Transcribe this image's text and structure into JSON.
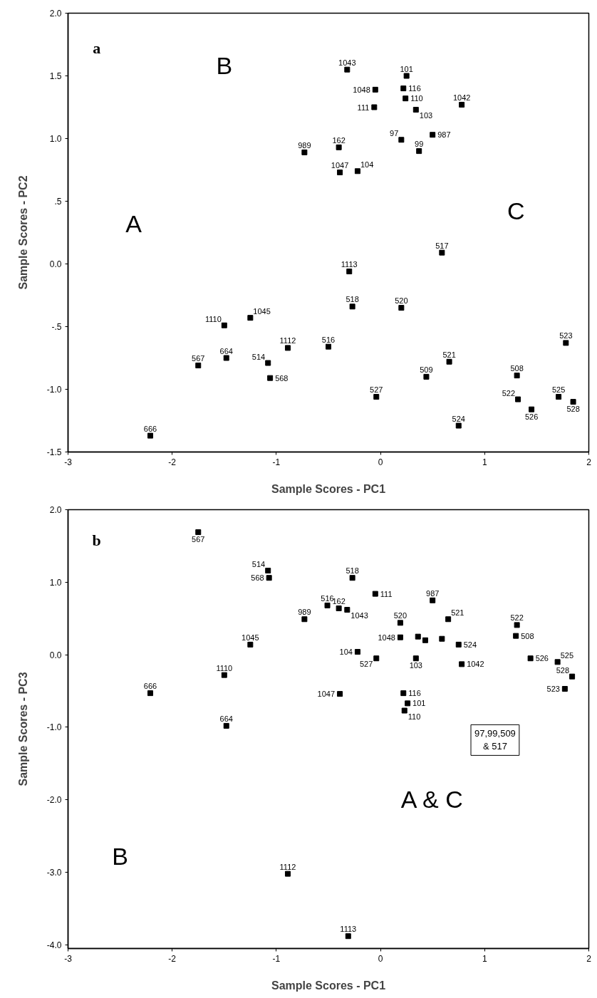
{
  "chart_data": [
    {
      "type": "scatter",
      "xlabel": "Sample Scores - PC1",
      "ylabel": "Sample Scores - PC2",
      "xlim": [
        -3,
        2
      ],
      "ylim": [
        -1.5,
        2.0
      ],
      "xticks": [
        -3,
        -2,
        -1,
        0,
        1,
        2
      ],
      "yticks": [
        {
          "value": 2.0,
          "label": "2.0"
        },
        {
          "value": 1.5,
          "label": "1.5"
        },
        {
          "value": 1.0,
          "label": "1.0"
        },
        {
          "value": 0.5,
          "label": ".5"
        },
        {
          "value": 0.0,
          "label": "0.0"
        },
        {
          "value": -0.5,
          "label": "-.5"
        },
        {
          "value": -1.0,
          "label": "-1.0"
        },
        {
          "value": -1.5,
          "label": "-1.5"
        }
      ],
      "grid": false,
      "marker": "square",
      "series": [
        {
          "color": "#000000",
          "x": [
            -0.32,
            0.25,
            0.22,
            0.24,
            -0.05,
            -0.06,
            0.34,
            0.78,
            0.2,
            0.5,
            0.37,
            -0.4,
            -0.39,
            -0.22,
            -0.73,
            -0.3,
            -0.27,
            0.2,
            0.59,
            -1.5,
            -1.25,
            -1.75,
            -1.48,
            -1.08,
            -0.89,
            -1.06,
            -0.5,
            -2.21,
            -0.04,
            0.44,
            0.66,
            1.78,
            1.31,
            1.32,
            1.45,
            1.71,
            1.85,
            0.75
          ],
          "values": [
            1.55,
            1.5,
            1.4,
            1.32,
            1.39,
            1.25,
            1.23,
            1.27,
            0.99,
            1.03,
            0.9,
            0.93,
            0.73,
            0.74,
            0.89,
            -0.06,
            -0.34,
            -0.35,
            0.09,
            -0.49,
            -0.43,
            -0.81,
            -0.75,
            -0.79,
            -0.67,
            -0.91,
            -0.66,
            -1.37,
            -1.06,
            -0.9,
            -0.78,
            -0.63,
            -0.89,
            -1.08,
            -1.16,
            -1.06,
            -1.1,
            -1.29
          ]
        }
      ],
      "annotations": [
        "a",
        "B",
        "A",
        "C",
        {
          "text": "1043",
          "x": -0.32,
          "y": 1.55
        },
        {
          "text": "101",
          "x": 0.25,
          "y": 1.5
        },
        {
          "text": "116",
          "x": 0.22,
          "y": 1.4
        },
        {
          "text": "110",
          "x": 0.24,
          "y": 1.32
        },
        {
          "text": "1048",
          "x": -0.05,
          "y": 1.39
        },
        {
          "text": "111",
          "x": -0.06,
          "y": 1.25
        },
        {
          "text": "103",
          "x": 0.34,
          "y": 1.23
        },
        {
          "text": "1042",
          "x": 0.78,
          "y": 1.27
        },
        {
          "text": "97",
          "x": 0.2,
          "y": 0.99
        },
        {
          "text": "987",
          "x": 0.5,
          "y": 1.03
        },
        {
          "text": "99",
          "x": 0.37,
          "y": 0.9
        },
        {
          "text": "162",
          "x": -0.4,
          "y": 0.93
        },
        {
          "text": "1047",
          "x": -0.39,
          "y": 0.73
        },
        {
          "text": "104",
          "x": -0.22,
          "y": 0.74
        },
        {
          "text": "989",
          "x": -0.73,
          "y": 0.89
        },
        {
          "text": "1113",
          "x": -0.3,
          "y": -0.06
        },
        {
          "text": "518",
          "x": -0.27,
          "y": -0.34
        },
        {
          "text": "520",
          "x": 0.2,
          "y": -0.35
        },
        {
          "text": "517",
          "x": 0.59,
          "y": 0.09
        },
        {
          "text": "1110",
          "x": -1.5,
          "y": -0.49
        },
        {
          "text": "1045",
          "x": -1.25,
          "y": -0.43
        },
        {
          "text": "567",
          "x": -1.75,
          "y": -0.81
        },
        {
          "text": "664",
          "x": -1.48,
          "y": -0.75
        },
        {
          "text": "514",
          "x": -1.08,
          "y": -0.79
        },
        {
          "text": "1112",
          "x": -0.89,
          "y": -0.67
        },
        {
          "text": "568",
          "x": -1.06,
          "y": -0.91
        },
        {
          "text": "516",
          "x": -0.5,
          "y": -0.66
        },
        {
          "text": "666",
          "x": -2.21,
          "y": -1.37
        },
        {
          "text": "527",
          "x": -0.04,
          "y": -1.06
        },
        {
          "text": "509",
          "x": 0.44,
          "y": -0.9
        },
        {
          "text": "521",
          "x": 0.66,
          "y": -0.78
        },
        {
          "text": "523",
          "x": 1.78,
          "y": -0.63
        },
        {
          "text": "508",
          "x": 1.31,
          "y": -0.89
        },
        {
          "text": "522",
          "x": 1.32,
          "y": -1.08
        },
        {
          "text": "526",
          "x": 1.45,
          "y": -1.16
        },
        {
          "text": "525",
          "x": 1.71,
          "y": -1.06
        },
        {
          "text": "528",
          "x": 1.85,
          "y": -1.1
        },
        {
          "text": "524",
          "x": 0.75,
          "y": -1.29
        }
      ]
    },
    {
      "type": "scatter",
      "xlabel": "Sample Scores - PC1",
      "ylabel": "Sample Scores - PC3",
      "xlim": [
        -3,
        2
      ],
      "ylim": [
        -4.05,
        2.0
      ],
      "xticks": [
        -3,
        -2,
        -1,
        0,
        1,
        2
      ],
      "yticks": [
        {
          "value": 2.0,
          "label": "2.0"
        },
        {
          "value": 1.0,
          "label": "1.0"
        },
        {
          "value": 0.0,
          "label": "0.0"
        },
        {
          "value": -1.0,
          "label": "-1.0"
        },
        {
          "value": -2.0,
          "label": "-2.0"
        },
        {
          "value": -3.0,
          "label": "-3.0"
        },
        {
          "value": -4.0,
          "label": "-4.0"
        }
      ],
      "grid": false,
      "marker": "square",
      "series": [
        {
          "color": "#000000",
          "x": [
            -1.75,
            -1.08,
            -1.07,
            -0.73,
            -0.51,
            -0.4,
            -0.32,
            -0.27,
            -0.05,
            -1.25,
            -1.5,
            -2.21,
            -1.48,
            -0.39,
            -0.22,
            -0.04,
            0.19,
            0.36,
            0.43,
            0.59,
            0.5,
            0.19,
            0.65,
            0.75,
            0.78,
            0.34,
            0.22,
            0.26,
            0.23,
            1.31,
            1.3,
            1.44,
            1.7,
            1.84,
            1.77,
            -0.89,
            -0.31
          ],
          "values": [
            1.69,
            1.16,
            1.06,
            0.49,
            0.68,
            0.64,
            0.62,
            1.06,
            0.84,
            0.14,
            -0.28,
            -0.53,
            -0.98,
            -0.54,
            0.04,
            -0.05,
            0.24,
            0.25,
            0.2,
            0.22,
            0.75,
            0.44,
            0.49,
            0.14,
            -0.13,
            -0.05,
            -0.53,
            -0.67,
            -0.77,
            0.41,
            0.26,
            -0.05,
            -0.1,
            -0.3,
            -0.47,
            -3.02,
            -3.88
          ]
        }
      ],
      "annotations": [
        "b",
        "B",
        "A & C",
        "97,99,509 & 517",
        {
          "text": "567",
          "x": -1.75,
          "y": 1.69
        },
        {
          "text": "514",
          "x": -1.08,
          "y": 1.16
        },
        {
          "text": "568",
          "x": -1.07,
          "y": 1.06
        },
        {
          "text": "989",
          "x": -0.73,
          "y": 0.49
        },
        {
          "text": "516",
          "x": -0.51,
          "y": 0.68
        },
        {
          "text": "162",
          "x": -0.4,
          "y": 0.64
        },
        {
          "text": "1043",
          "x": -0.32,
          "y": 0.62
        },
        {
          "text": "518",
          "x": -0.27,
          "y": 1.06
        },
        {
          "text": "111",
          "x": -0.05,
          "y": 0.84
        },
        {
          "text": "1045",
          "x": -1.25,
          "y": 0.14
        },
        {
          "text": "1110",
          "x": -1.5,
          "y": -0.28
        },
        {
          "text": "666",
          "x": -2.21,
          "y": -0.53
        },
        {
          "text": "664",
          "x": -1.48,
          "y": -0.98
        },
        {
          "text": "1047",
          "x": -0.39,
          "y": -0.54
        },
        {
          "text": "104",
          "x": -0.22,
          "y": 0.04
        },
        {
          "text": "527",
          "x": -0.04,
          "y": -0.05
        },
        {
          "text": "1048",
          "x": 0.19,
          "y": 0.24
        },
        {
          "text": "987",
          "x": 0.5,
          "y": 0.75
        },
        {
          "text": "520",
          "x": 0.19,
          "y": 0.44
        },
        {
          "text": "521",
          "x": 0.65,
          "y": 0.49
        },
        {
          "text": "524",
          "x": 0.75,
          "y": 0.14
        },
        {
          "text": "1042",
          "x": 0.78,
          "y": -0.13
        },
        {
          "text": "103",
          "x": 0.34,
          "y": -0.05
        },
        {
          "text": "116",
          "x": 0.22,
          "y": -0.53
        },
        {
          "text": "101",
          "x": 0.26,
          "y": -0.67
        },
        {
          "text": "110",
          "x": 0.23,
          "y": -0.77
        },
        {
          "text": "522",
          "x": 1.31,
          "y": 0.41
        },
        {
          "text": "508",
          "x": 1.3,
          "y": 0.26
        },
        {
          "text": "526",
          "x": 1.44,
          "y": -0.05
        },
        {
          "text": "525",
          "x": 1.7,
          "y": -0.1
        },
        {
          "text": "528",
          "x": 1.84,
          "y": -0.3
        },
        {
          "text": "523",
          "x": 1.77,
          "y": -0.47
        },
        {
          "text": "1112",
          "x": -0.89,
          "y": -3.02
        },
        {
          "text": "1113",
          "x": -0.31,
          "y": -3.88
        }
      ]
    }
  ]
}
